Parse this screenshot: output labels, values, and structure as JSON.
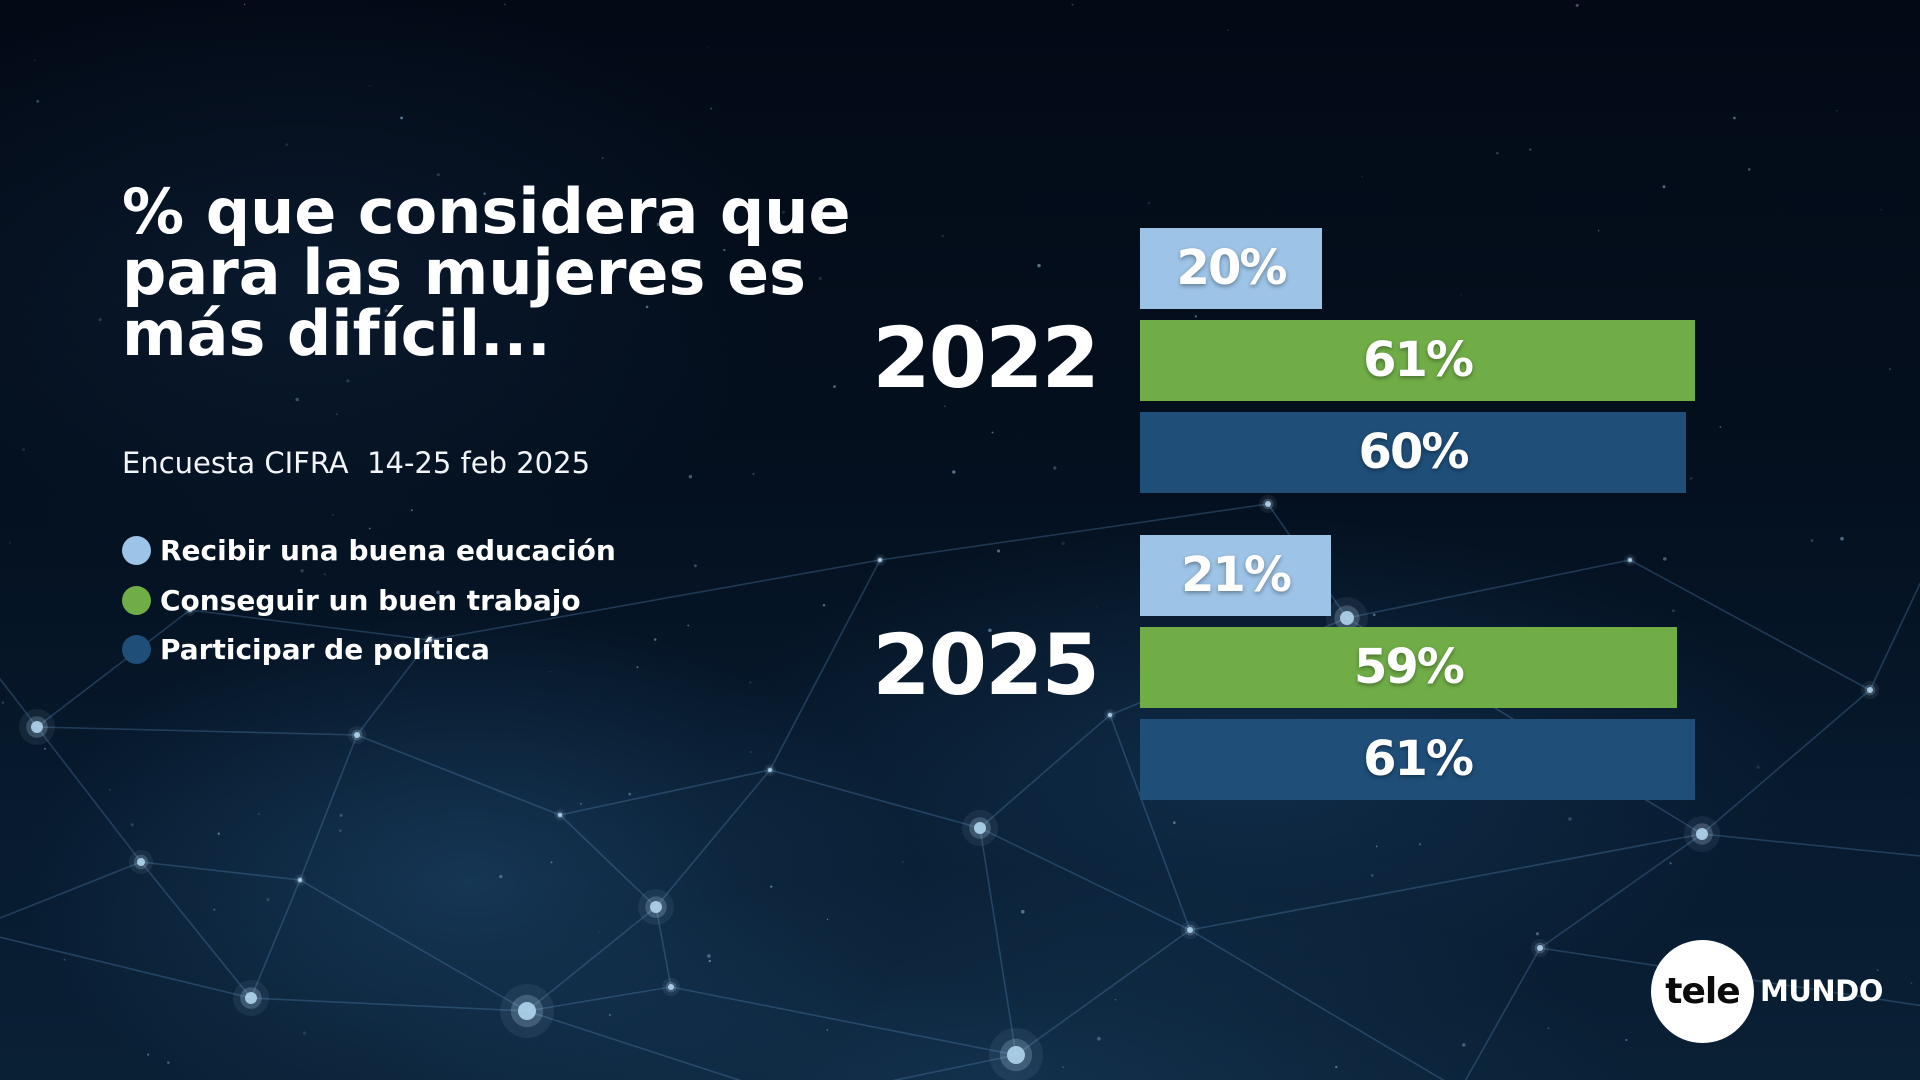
{
  "chart_data": {
    "type": "bar",
    "orientation": "horizontal",
    "title": "% que considera que para las mujeres es más difícil...",
    "subtitle": "Encuesta CIFRA  14-25 feb 2025",
    "categories": [
      "2022",
      "2025"
    ],
    "series": [
      {
        "name": "Recibir una buena educación",
        "color": "#9dc3e6",
        "values": [
          20,
          21
        ],
        "labels": [
          "20%",
          "21%"
        ]
      },
      {
        "name": "Conseguir un buen trabajo",
        "color": "#70ad47",
        "values": [
          61,
          59
        ],
        "labels": [
          "61%",
          "59%"
        ]
      },
      {
        "name": "Participar de política",
        "color": "#1f4e79",
        "values": [
          60,
          61
        ],
        "labels": [
          "60%",
          "61%"
        ]
      }
    ],
    "grid": false,
    "legend": "left"
  },
  "logo": {
    "circle_text": "tele",
    "side_text": "MUNDO"
  }
}
